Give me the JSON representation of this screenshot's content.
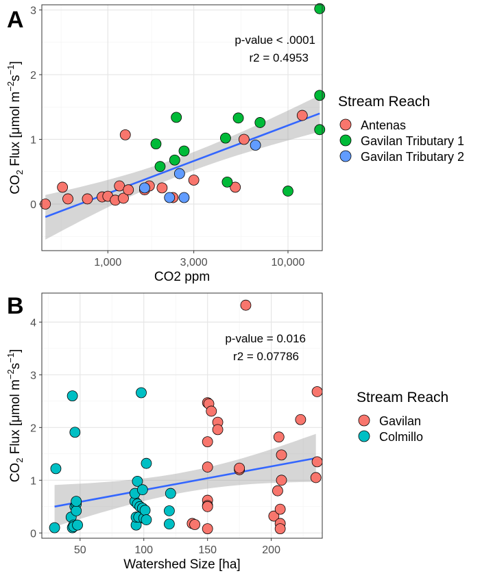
{
  "chart_data": [
    {
      "panel_label": "A",
      "type": "scatter",
      "xscale": "log10",
      "xlabel": "CO2 ppm",
      "ylabel": {
        "base": "CO",
        "sub": "2",
        "mid": " Flux [",
        "mu": "μ",
        "rest": "mol m",
        "sup1": "−2",
        "s": "s",
        "sup2": "−1",
        "close": "]"
      },
      "xlim": [
        430,
        15500
      ],
      "ylim": [
        -0.72,
        3.08
      ],
      "xticks": [
        1000,
        3000,
        10000
      ],
      "xticklabels": [
        "1,000",
        "3,000",
        "10,000"
      ],
      "xminor": [
        550,
        1750,
        5500
      ],
      "yticks": [
        0,
        1,
        2,
        3
      ],
      "yticklabels": [
        "0",
        "1",
        "2",
        "3"
      ],
      "yminor": [
        -0.5,
        0.5,
        1.5,
        2.5
      ],
      "grid": true,
      "annotations": [
        "p-value < .0001",
        "r2 = 0.4953"
      ],
      "legend": {
        "title": "Stream Reach",
        "position": "right",
        "entries": [
          {
            "name": "Antenas",
            "color": "#F8766D"
          },
          {
            "name": "Gavilan Tributary 1",
            "color": "#00BA38"
          },
          {
            "name": "Gavilan Tributary 2",
            "color": "#619CFF"
          }
        ]
      },
      "series": [
        {
          "name": "Antenas",
          "color": "#F8766D",
          "points": [
            [
              450,
              0.0
            ],
            [
              560,
              0.26
            ],
            [
              600,
              0.08
            ],
            [
              770,
              0.08
            ],
            [
              930,
              0.11
            ],
            [
              1000,
              0.12
            ],
            [
              1100,
              0.06
            ],
            [
              1160,
              0.28
            ],
            [
              1220,
              0.09
            ],
            [
              1250,
              1.07
            ],
            [
              1300,
              0.22
            ],
            [
              1600,
              0.22
            ],
            [
              1700,
              0.28
            ],
            [
              2000,
              0.25
            ],
            [
              2300,
              0.1
            ],
            [
              3000,
              0.37
            ],
            [
              5100,
              0.26
            ],
            [
              5700,
              1.0
            ],
            [
              12000,
              1.37
            ]
          ]
        },
        {
          "name": "Gavilan Tributary 1",
          "color": "#00BA38",
          "points": [
            [
              1850,
              0.93
            ],
            [
              1950,
              0.58
            ],
            [
              2350,
              0.68
            ],
            [
              2400,
              1.34
            ],
            [
              2650,
              0.82
            ],
            [
              4500,
              1.02
            ],
            [
              4600,
              0.34
            ],
            [
              5300,
              1.33
            ],
            [
              7000,
              1.26
            ],
            [
              10000,
              0.2
            ],
            [
              15000,
              3.02
            ],
            [
              15000,
              1.68
            ],
            [
              15000,
              1.15
            ]
          ]
        },
        {
          "name": "Gavilan Tributary 2",
          "color": "#619CFF",
          "points": [
            [
              1600,
              0.25
            ],
            [
              2200,
              0.1
            ],
            [
              2500,
              0.47
            ],
            [
              2650,
              0.1
            ],
            [
              6600,
              0.91
            ]
          ]
        }
      ],
      "fit": {
        "x": [
          450,
          15000
        ],
        "y": [
          -0.2,
          1.4
        ],
        "ci_low": [
          -0.55,
          1.12
        ],
        "ci_high": [
          0.14,
          1.68
        ]
      }
    },
    {
      "panel_label": "B",
      "type": "scatter",
      "xscale": "linear",
      "xlabel": "Watershed Size [ha]",
      "ylabel": {
        "base": "CO",
        "sub": "2",
        "mid": " Flux [",
        "mu": "μ",
        "rest": "mol m",
        "sup1": "−2",
        "s": "s",
        "sup2": "−1",
        "close": "]"
      },
      "xlim": [
        20,
        240
      ],
      "ylim": [
        -0.1,
        4.55
      ],
      "xticks": [
        50,
        100,
        150,
        200
      ],
      "xticklabels": [
        "50",
        "100",
        "150",
        "200"
      ],
      "xminor": [
        25,
        75,
        125,
        175,
        225
      ],
      "yticks": [
        0,
        1,
        2,
        3,
        4
      ],
      "yticklabels": [
        "0",
        "1",
        "2",
        "3",
        "4"
      ],
      "yminor": [
        0.5,
        1.5,
        2.5,
        3.5
      ],
      "grid": true,
      "annotations": [
        "p-value = 0.016",
        "r2 = 0.07786"
      ],
      "legend": {
        "title": "Stream Reach",
        "position": "right",
        "entries": [
          {
            "name": "Gavilan",
            "color": "#F8766D"
          },
          {
            "name": "Colmillo",
            "color": "#00BFC4"
          }
        ]
      },
      "series": [
        {
          "name": "Gavilan",
          "color": "#F8766D",
          "points": [
            [
              138,
              0.18
            ],
            [
              140,
              0.16
            ],
            [
              150,
              0.08
            ],
            [
              150,
              0.62
            ],
            [
              150,
              0.52
            ],
            [
              150,
              0.5
            ],
            [
              150,
              1.25
            ],
            [
              150,
              1.73
            ],
            [
              150,
              2.47
            ],
            [
              151,
              2.45
            ],
            [
              153,
              2.31
            ],
            [
              158,
              2.1
            ],
            [
              158,
              1.96
            ],
            [
              175,
              1.2
            ],
            [
              175,
              1.23
            ],
            [
              180,
              4.32
            ],
            [
              202,
              0.32
            ],
            [
              205,
              0.8
            ],
            [
              206,
              1.82
            ],
            [
              207,
              0.45
            ],
            [
              207,
              0.18
            ],
            [
              207,
              0.08
            ],
            [
              208,
              1.48
            ],
            [
              208,
              1.0
            ],
            [
              223,
              2.15
            ],
            [
              236,
              2.68
            ],
            [
              236,
              1.35
            ],
            [
              235,
              1.05
            ]
          ]
        },
        {
          "name": "Colmillo",
          "color": "#00BFC4",
          "points": [
            [
              30,
              0.1
            ],
            [
              31,
              1.22
            ],
            [
              43,
              0.3
            ],
            [
              44,
              2.6
            ],
            [
              44,
              0.1
            ],
            [
              45,
              0.15
            ],
            [
              45,
              0.12
            ],
            [
              46,
              1.91
            ],
            [
              46,
              0.5
            ],
            [
              47,
              0.55
            ],
            [
              47,
              0.42
            ],
            [
              47,
              0.6
            ],
            [
              48,
              0.15
            ],
            [
              93,
              0.6
            ],
            [
              93,
              0.75
            ],
            [
              94,
              0.15
            ],
            [
              94,
              0.3
            ],
            [
              95,
              0.98
            ],
            [
              95,
              0.55
            ],
            [
              96,
              0.3
            ],
            [
              97,
              0.5
            ],
            [
              98,
              2.66
            ],
            [
              99,
              0.82
            ],
            [
              99,
              0.47
            ],
            [
              100,
              0.28
            ],
            [
              101,
              0.43
            ],
            [
              102,
              1.32
            ],
            [
              102,
              0.25
            ],
            [
              120,
              0.42
            ],
            [
              120,
              0.17
            ],
            [
              121,
              0.75
            ]
          ]
        }
      ],
      "fit": {
        "x": [
          30,
          235
        ],
        "y": [
          0.5,
          1.42
        ],
        "ci_low": [
          0.12,
          0.97
        ],
        "ci_high": [
          0.91,
          1.88
        ]
      }
    }
  ]
}
